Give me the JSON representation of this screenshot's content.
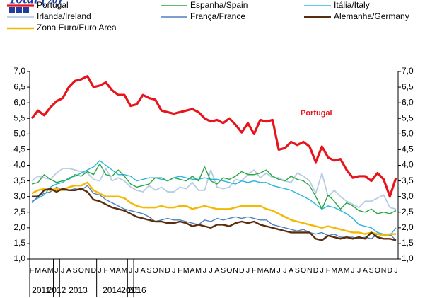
{
  "chart_data": {
    "type": "line",
    "title": "Total (%)",
    "annotation": "Portugal",
    "categories": [
      "F",
      "M",
      "A",
      "M",
      "J",
      "J",
      "A",
      "S",
      "O",
      "N",
      "D",
      "J",
      "F",
      "M",
      "A",
      "M",
      "J",
      "J",
      "A",
      "S",
      "O",
      "N",
      "D",
      "J",
      "F",
      "M",
      "A",
      "M",
      "J",
      "J",
      "A",
      "S",
      "O",
      "N",
      "D",
      "J",
      "F",
      "M",
      "A",
      "M",
      "J",
      "J",
      "A",
      "S",
      "O",
      "N",
      "D",
      "J",
      "F",
      "M",
      "A",
      "M",
      "J",
      "J",
      "A",
      "S",
      "O",
      "N",
      "D",
      "J"
    ],
    "years": [
      "2011",
      "2012",
      "2013",
      "2014",
      "2015",
      "2016"
    ],
    "ylim": [
      1,
      7
    ],
    "yticks": [
      {
        "value": 1,
        "label": "1,0"
      },
      {
        "value": 1.5,
        "label": "1,5"
      },
      {
        "value": 2,
        "label": "2,0"
      },
      {
        "value": 2.5,
        "label": "2,5"
      },
      {
        "value": 3,
        "label": "3,0"
      },
      {
        "value": 3.5,
        "label": "3,5"
      },
      {
        "value": 4,
        "label": "4,0"
      },
      {
        "value": 4.5,
        "label": "4,5"
      },
      {
        "value": 5,
        "label": "5,0"
      },
      {
        "value": 5.5,
        "label": "5,5"
      },
      {
        "value": 6,
        "label": "6,0"
      },
      {
        "value": 6.5,
        "label": "6,5"
      },
      {
        "value": 7,
        "label": "7,0"
      }
    ],
    "grid": false,
    "series": [
      {
        "name": "Portugal",
        "color": "#e8141b",
        "values": [
          5.5,
          5.75,
          5.6,
          5.85,
          6.05,
          6.15,
          6.5,
          6.7,
          6.75,
          6.85,
          6.5,
          6.55,
          6.65,
          6.4,
          6.25,
          6.25,
          5.9,
          5.95,
          6.25,
          6.15,
          6.1,
          5.75,
          5.7,
          5.65,
          5.7,
          5.75,
          5.8,
          5.7,
          5.5,
          5.4,
          5.45,
          5.35,
          5.5,
          5.3,
          5.05,
          5.35,
          5.0,
          5.45,
          5.4,
          5.45,
          4.5,
          4.55,
          4.75,
          4.65,
          4.75,
          4.6,
          4.1,
          4.6,
          4.25,
          4.15,
          4.2,
          3.85,
          3.6,
          3.65,
          3.65,
          3.5,
          3.75,
          3.55,
          3.0,
          3.6
        ]
      },
      {
        "name": "Espanha/Spain",
        "color": "#27a844",
        "values": [
          3.4,
          3.45,
          3.7,
          3.55,
          3.45,
          3.5,
          3.55,
          3.7,
          3.65,
          3.8,
          3.7,
          4.05,
          3.7,
          3.65,
          3.85,
          3.65,
          3.4,
          3.3,
          3.35,
          3.4,
          3.6,
          3.6,
          3.5,
          3.6,
          3.55,
          3.5,
          3.65,
          3.5,
          3.95,
          3.5,
          3.4,
          3.6,
          3.55,
          3.65,
          3.8,
          3.7,
          3.7,
          3.75,
          3.85,
          3.65,
          3.55,
          3.5,
          3.65,
          3.55,
          3.5,
          3.35,
          3.0,
          2.6,
          3.05,
          2.85,
          2.6,
          2.8,
          2.7,
          2.55,
          2.5,
          2.6,
          2.45,
          2.5,
          2.45,
          2.55
        ]
      },
      {
        "name": "Itália/Italy",
        "color": "#28b4e0",
        "values": [
          2.85,
          2.95,
          3.05,
          3.3,
          3.4,
          3.45,
          3.6,
          3.65,
          3.75,
          3.85,
          3.95,
          4.15,
          4.0,
          3.85,
          3.7,
          3.7,
          3.65,
          3.5,
          3.55,
          3.6,
          3.6,
          3.55,
          3.5,
          3.6,
          3.65,
          3.6,
          3.55,
          3.55,
          3.6,
          3.55,
          3.55,
          3.5,
          3.45,
          3.4,
          3.5,
          3.45,
          3.5,
          3.45,
          3.45,
          3.35,
          3.3,
          3.25,
          3.2,
          3.1,
          3.0,
          2.9,
          2.75,
          2.6,
          2.7,
          2.65,
          2.55,
          2.45,
          2.3,
          2.1,
          2.05,
          2.0,
          1.85,
          1.8,
          1.75,
          2.0
        ]
      },
      {
        "name": "Irlanda/Ireland",
        "color": "#b8cce4",
        "values": [
          3.5,
          3.65,
          3.6,
          3.55,
          3.75,
          3.9,
          3.9,
          3.85,
          3.8,
          3.75,
          3.55,
          3.5,
          3.9,
          3.5,
          3.6,
          3.5,
          3.3,
          3.2,
          3.15,
          3.35,
          3.2,
          3.3,
          3.15,
          3.15,
          3.3,
          3.25,
          3.45,
          3.2,
          3.2,
          3.85,
          3.3,
          3.25,
          3.3,
          3.55,
          3.5,
          3.7,
          3.85,
          3.6,
          3.75,
          3.6,
          3.6,
          3.5,
          3.45,
          3.75,
          3.65,
          3.5,
          3.1,
          3.75,
          3.0,
          3.2,
          3.0,
          2.85,
          2.75,
          2.65,
          2.85,
          2.85,
          2.95,
          3.05,
          2.65,
          2.6
        ]
      },
      {
        "name": "França/France",
        "color": "#4f7fbd",
        "values": [
          2.8,
          3.0,
          3.1,
          3.15,
          3.3,
          3.2,
          3.2,
          3.25,
          3.2,
          3.35,
          3.1,
          3.05,
          2.9,
          2.8,
          2.7,
          2.6,
          2.55,
          2.5,
          2.45,
          2.35,
          2.2,
          2.25,
          2.3,
          2.25,
          2.25,
          2.2,
          2.15,
          2.1,
          2.25,
          2.2,
          2.3,
          2.25,
          2.3,
          2.35,
          2.3,
          2.35,
          2.3,
          2.25,
          2.25,
          2.1,
          2.05,
          2.0,
          1.95,
          1.9,
          1.95,
          1.85,
          1.8,
          1.85,
          1.75,
          1.8,
          1.7,
          1.7,
          1.7,
          1.65,
          1.7,
          1.65,
          1.8,
          1.75,
          1.8,
          1.6
        ]
      },
      {
        "name": "Alemanha/Germany",
        "color": "#5a2d0c",
        "values": [
          3.0,
          3.0,
          3.2,
          3.25,
          3.15,
          3.25,
          3.2,
          3.2,
          3.25,
          3.15,
          2.9,
          2.85,
          2.75,
          2.65,
          2.6,
          2.55,
          2.45,
          2.35,
          2.3,
          2.25,
          2.2,
          2.2,
          2.15,
          2.15,
          2.2,
          2.15,
          2.05,
          2.1,
          2.05,
          2.0,
          2.1,
          2.1,
          2.05,
          2.15,
          2.2,
          2.15,
          2.2,
          2.1,
          2.05,
          2.0,
          1.95,
          1.9,
          1.85,
          1.85,
          1.85,
          1.85,
          1.65,
          1.6,
          1.75,
          1.7,
          1.65,
          1.7,
          1.65,
          1.7,
          1.65,
          1.85,
          1.7,
          1.65,
          1.65,
          1.6
        ]
      },
      {
        "name": "Zona Euro/Euro Area",
        "color": "#f5b800",
        "values": [
          3.1,
          3.2,
          3.25,
          3.2,
          3.25,
          3.2,
          3.3,
          3.35,
          3.35,
          3.45,
          3.2,
          3.1,
          3.0,
          3.0,
          3.0,
          2.95,
          2.8,
          2.7,
          2.65,
          2.65,
          2.65,
          2.7,
          2.65,
          2.65,
          2.7,
          2.7,
          2.6,
          2.65,
          2.7,
          2.65,
          2.6,
          2.6,
          2.6,
          2.65,
          2.7,
          2.7,
          2.7,
          2.7,
          2.6,
          2.55,
          2.45,
          2.35,
          2.25,
          2.2,
          2.15,
          2.1,
          2.05,
          2.0,
          2.05,
          2.0,
          1.95,
          1.9,
          1.85,
          1.85,
          1.8,
          1.85,
          1.8,
          1.75,
          1.8,
          1.8
        ]
      }
    ]
  }
}
